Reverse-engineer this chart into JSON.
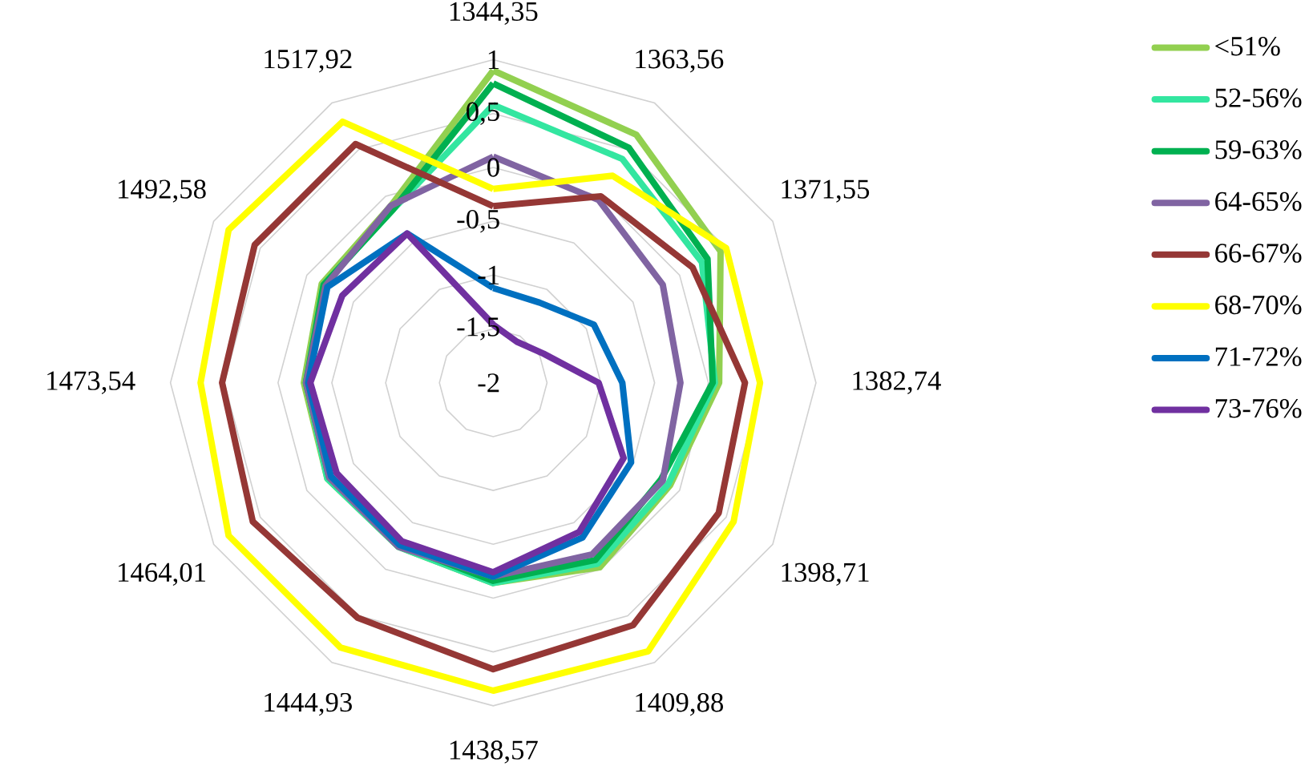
{
  "chart_data": {
    "type": "radar",
    "categories": [
      "1344,35",
      "1363,56",
      "1371,55",
      "1382,74",
      "1398,71",
      "1409,88",
      "1438,57",
      "1444,93",
      "1464,01",
      "1473,54",
      "1492,58",
      "1517,92"
    ],
    "ylim": [
      -2,
      1
    ],
    "yticks": [
      -2,
      {
        "value": -1.5,
        "label": "-1,5"
      },
      -1,
      {
        "value": -0.5,
        "label": "-0,5"
      },
      0,
      {
        "value": 0.5,
        "label": "0,5"
      },
      1
    ],
    "grid": true,
    "legend": "right",
    "series": [
      {
        "name": "<51%",
        "color": "#92d050",
        "values": [
          0.9,
          0.66,
          0.44,
          0.1,
          -0.1,
          -0.02,
          -0.14,
          -0.24,
          -0.22,
          -0.24,
          -0.16,
          -0.1
        ]
      },
      {
        "name": "52-56%",
        "color": "#33e6a0",
        "values": [
          0.58,
          0.4,
          0.24,
          0.06,
          -0.12,
          -0.06,
          -0.14,
          -0.24,
          -0.22,
          -0.26,
          -0.18,
          -0.14
        ]
      },
      {
        "name": "59-63%",
        "color": "#00b050",
        "values": [
          0.78,
          0.52,
          0.3,
          0.04,
          -0.2,
          -0.1,
          -0.16,
          -0.26,
          -0.24,
          -0.26,
          -0.18,
          -0.14
        ]
      },
      {
        "name": "64-65%",
        "color": "#8064a2",
        "values": [
          0.1,
          -0.04,
          -0.18,
          -0.26,
          -0.18,
          -0.16,
          -0.2,
          -0.24,
          -0.24,
          -0.26,
          -0.2,
          -0.1
        ]
      },
      {
        "name": "66-67%",
        "color": "#953735",
        "values": [
          -0.36,
          0.0,
          0.14,
          0.34,
          0.42,
          0.6,
          0.66,
          0.52,
          0.58,
          0.52,
          0.56,
          0.56
        ]
      },
      {
        "name": "68-70%",
        "color": "#ffff00",
        "values": [
          -0.2,
          0.22,
          0.5,
          0.48,
          0.58,
          0.88,
          0.86,
          0.84,
          0.84,
          0.72,
          0.84,
          0.8
        ]
      },
      {
        "name": "71-72%",
        "color": "#0070c0",
        "values": [
          -1.12,
          -1.14,
          -0.92,
          -0.8,
          -0.52,
          -0.34,
          -0.2,
          -0.26,
          -0.26,
          -0.28,
          -0.22,
          -0.4
        ]
      },
      {
        "name": "73-76%",
        "color": "#7030a0",
        "values": [
          -1.46,
          -1.56,
          -1.46,
          -1.02,
          -0.6,
          -0.4,
          -0.24,
          -0.3,
          -0.32,
          -0.3,
          -0.38,
          -0.4
        ]
      }
    ]
  }
}
